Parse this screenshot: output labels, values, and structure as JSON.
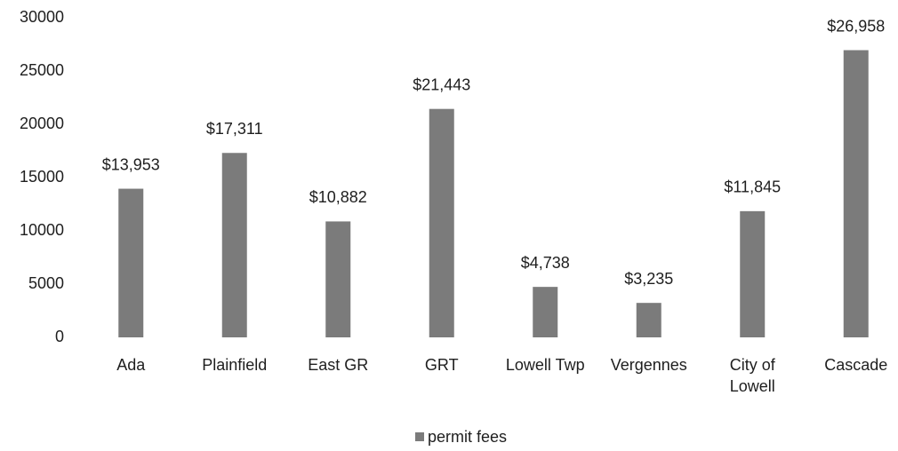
{
  "chart_data": {
    "type": "bar",
    "categories": [
      "Ada",
      "Plainfield",
      "East GR",
      "GRT",
      "Lowell Twp",
      "Vergennes",
      "City of Lowell",
      "Cascade"
    ],
    "series": [
      {
        "name": "permit fees",
        "color": "#7b7b7b",
        "values": [
          13953,
          17311,
          10882,
          21443,
          4738,
          3235,
          11845,
          26958
        ],
        "value_labels": [
          "$13,953",
          "$17,311",
          "$10,882",
          "$21,443",
          "$4,738",
          "$3,235",
          "$11,845",
          "$26,958"
        ]
      }
    ],
    "ylim": [
      0,
      30000
    ],
    "yticks": [
      0,
      5000,
      10000,
      15000,
      20000,
      25000,
      30000
    ],
    "grid": false,
    "legend": "bottom"
  }
}
